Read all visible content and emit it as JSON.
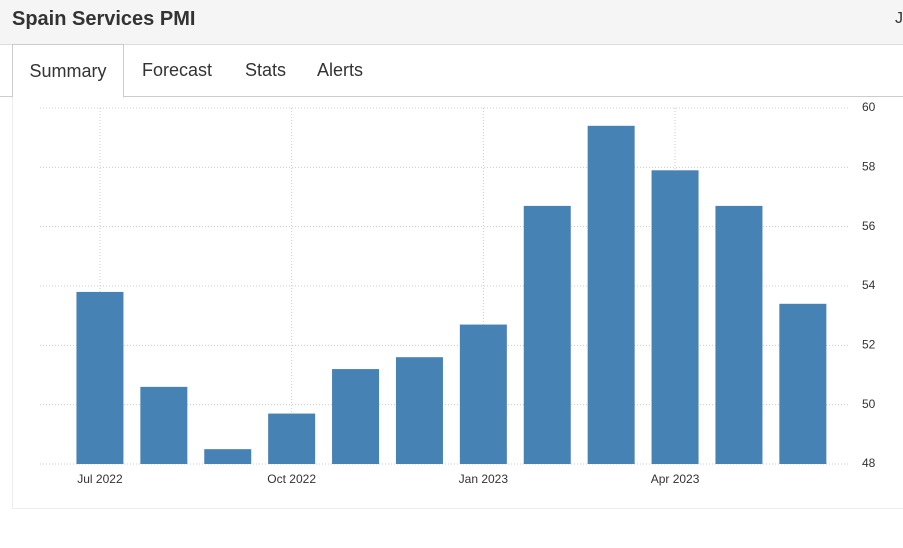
{
  "header": {
    "title": "Spain Services PMI",
    "right": "J"
  },
  "tabs": [
    "Summary",
    "Forecast",
    "Stats",
    "Alerts"
  ],
  "chart_data": {
    "type": "bar",
    "categories": [
      "Jul 2022",
      null,
      null,
      "Oct 2022",
      null,
      null,
      "Jan 2023",
      null,
      null,
      "Apr 2023",
      null,
      null
    ],
    "values": [
      53.8,
      50.6,
      48.5,
      49.7,
      51.2,
      51.6,
      52.7,
      56.7,
      59.4,
      57.9,
      56.7,
      53.4
    ],
    "color": "#4682b4",
    "ylim": [
      48,
      60
    ],
    "yticks": [
      48,
      50,
      52,
      54,
      56,
      58,
      60
    ],
    "grid": true
  }
}
